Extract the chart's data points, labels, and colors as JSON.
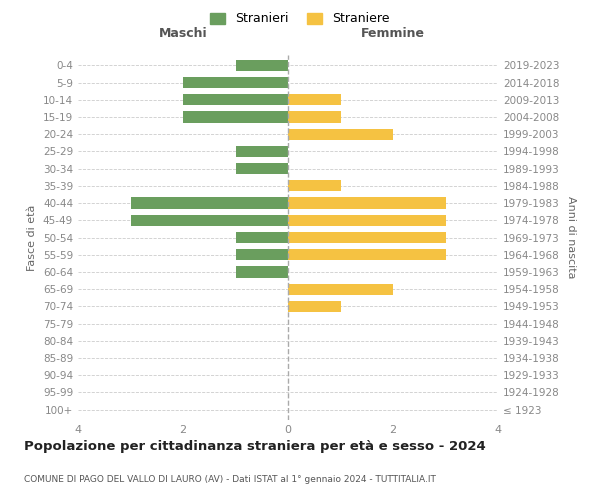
{
  "age_groups": [
    "100+",
    "95-99",
    "90-94",
    "85-89",
    "80-84",
    "75-79",
    "70-74",
    "65-69",
    "60-64",
    "55-59",
    "50-54",
    "45-49",
    "40-44",
    "35-39",
    "30-34",
    "25-29",
    "20-24",
    "15-19",
    "10-14",
    "5-9",
    "0-4"
  ],
  "birth_years": [
    "≤ 1923",
    "1924-1928",
    "1929-1933",
    "1934-1938",
    "1939-1943",
    "1944-1948",
    "1949-1953",
    "1954-1958",
    "1959-1963",
    "1964-1968",
    "1969-1973",
    "1974-1978",
    "1979-1983",
    "1984-1988",
    "1989-1993",
    "1994-1998",
    "1999-2003",
    "2004-2008",
    "2009-2013",
    "2014-2018",
    "2019-2023"
  ],
  "males": [
    0,
    0,
    0,
    0,
    0,
    0,
    0,
    0,
    1,
    1,
    1,
    3,
    3,
    0,
    1,
    1,
    0,
    2,
    2,
    2,
    1
  ],
  "females": [
    0,
    0,
    0,
    0,
    0,
    0,
    1,
    2,
    0,
    3,
    3,
    3,
    3,
    1,
    0,
    0,
    2,
    1,
    1,
    0,
    0
  ],
  "male_color": "#6a9e5e",
  "female_color": "#f5c242",
  "male_label": "Stranieri",
  "female_label": "Straniere",
  "title": "Popolazione per cittadinanza straniera per età e sesso - 2024",
  "subtitle": "COMUNE DI PAGO DEL VALLO DI LAURO (AV) - Dati ISTAT al 1° gennaio 2024 - TUTTITALIA.IT",
  "ylabel_left": "Fasce di età",
  "ylabel_right": "Anni di nascita",
  "xlabel_left": "Maschi",
  "xlabel_right": "Femmine",
  "xlim": 4,
  "background_color": "#ffffff",
  "grid_color": "#cccccc"
}
